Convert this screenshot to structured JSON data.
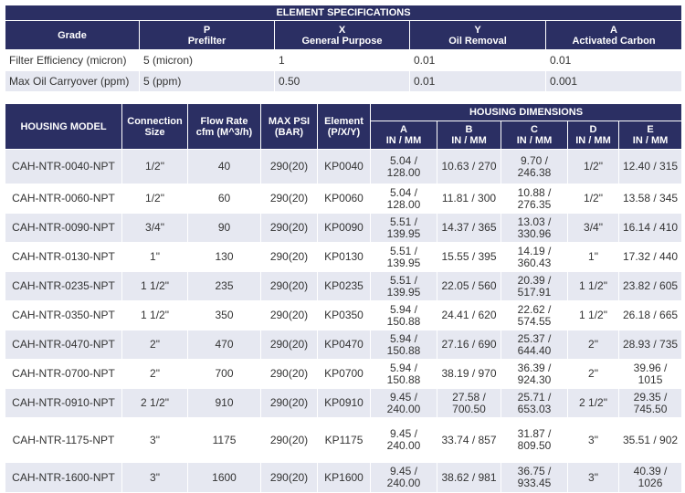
{
  "spec": {
    "title": "ELEMENT SPECIFICATIONS",
    "headers": [
      [
        "Grade"
      ],
      [
        "P",
        "Prefilter"
      ],
      [
        "X",
        "General Purpose"
      ],
      [
        "Y",
        "Oil Removal"
      ],
      [
        "A",
        "Activated Carbon"
      ]
    ],
    "rows": [
      [
        "Filter Efficiency (micron)",
        "5 (micron)",
        "1",
        "0.01",
        "0.01"
      ],
      [
        "Max Oil Carryover (ppm)",
        "5 (ppm)",
        "0.50",
        "0.01",
        "0.001"
      ]
    ]
  },
  "housing": {
    "group_header": "HOUSING DIMENSIONS",
    "headers": [
      [
        "HOUSING MODEL"
      ],
      [
        "Connection",
        "Size"
      ],
      [
        "Flow Rate",
        "cfm (M^3/h)"
      ],
      [
        "MAX PSI",
        "(BAR)"
      ],
      [
        "Element",
        "(P/X/Y)"
      ]
    ],
    "dim_headers": [
      [
        "A",
        "IN / MM"
      ],
      [
        "B",
        "IN / MM"
      ],
      [
        "C",
        "IN / MM"
      ],
      [
        "D",
        "IN / MM"
      ],
      [
        "E",
        "IN / MM"
      ]
    ],
    "rows": [
      [
        "CAH-NTR-0040-NPT",
        "1/2\"",
        "40",
        "290(20)",
        "KP0040",
        "5.04 / 128.00",
        "10.63 / 270",
        "9.70 / 246.38",
        "1/2\"",
        "12.40 / 315"
      ],
      [
        "CAH-NTR-0060-NPT",
        "1/2\"",
        "60",
        "290(20)",
        "KP0060",
        "5.04 / 128.00",
        "11.81 / 300",
        "10.88 / 276.35",
        "1/2\"",
        "13.58 / 345"
      ],
      [
        "CAH-NTR-0090-NPT",
        "3/4\"",
        "90",
        "290(20)",
        "KP0090",
        "5.51 / 139.95",
        "14.37 / 365",
        "13.03 / 330.96",
        "3/4\"",
        "16.14 / 410"
      ],
      [
        "CAH-NTR-0130-NPT",
        "1\"",
        "130",
        "290(20)",
        "KP0130",
        "5.51 / 139.95",
        "15.55 / 395",
        "14.19 / 360.43",
        "1\"",
        "17.32 / 440"
      ],
      [
        "CAH-NTR-0235-NPT",
        "1 1/2\"",
        "235",
        "290(20)",
        "KP0235",
        "5.51 / 139.95",
        "22.05 / 560",
        "20.39 / 517.91",
        "1 1/2\"",
        "23.82 / 605"
      ],
      [
        "CAH-NTR-0350-NPT",
        "1 1/2\"",
        "350",
        "290(20)",
        "KP0350",
        "5.94 / 150.88",
        "24.41 / 620",
        "22.62 / 574.55",
        "1 1/2\"",
        "26.18 / 665"
      ],
      [
        "CAH-NTR-0470-NPT",
        "2\"",
        "470",
        "290(20)",
        "KP0470",
        "5.94 / 150.88",
        "27.16 / 690",
        "25.37 / 644.40",
        "2\"",
        "28.93 / 735"
      ],
      [
        "CAH-NTR-0700-NPT",
        "2\"",
        "700",
        "290(20)",
        "KP0700",
        "5.94 / 150.88",
        "38.19 / 970",
        "36.39 / 924.30",
        "2\"",
        "39.96 / 1015"
      ],
      [
        "CAH-NTR-0910-NPT",
        "2 1/2\"",
        "910",
        "290(20)",
        "KP0910",
        "9.45 / 240.00",
        "27.58 / 700.50",
        "25.71 / 653.03",
        "2 1/2\"",
        "29.35 / 745.50"
      ],
      [
        "CAH-NTR-1175-NPT",
        "3\"",
        "1175",
        "290(20)",
        "KP1175",
        "9.45 / 240.00",
        "33.74 / 857",
        "31.87 / 809.50",
        "3\"",
        "35.51 / 902"
      ],
      [
        "CAH-NTR-1600-NPT",
        "3\"",
        "1600",
        "290(20)",
        "KP1600",
        "9.45 / 240.00",
        "38.62 / 981",
        "36.75 / 933.45",
        "3\"",
        "40.39 / 1026"
      ]
    ]
  }
}
